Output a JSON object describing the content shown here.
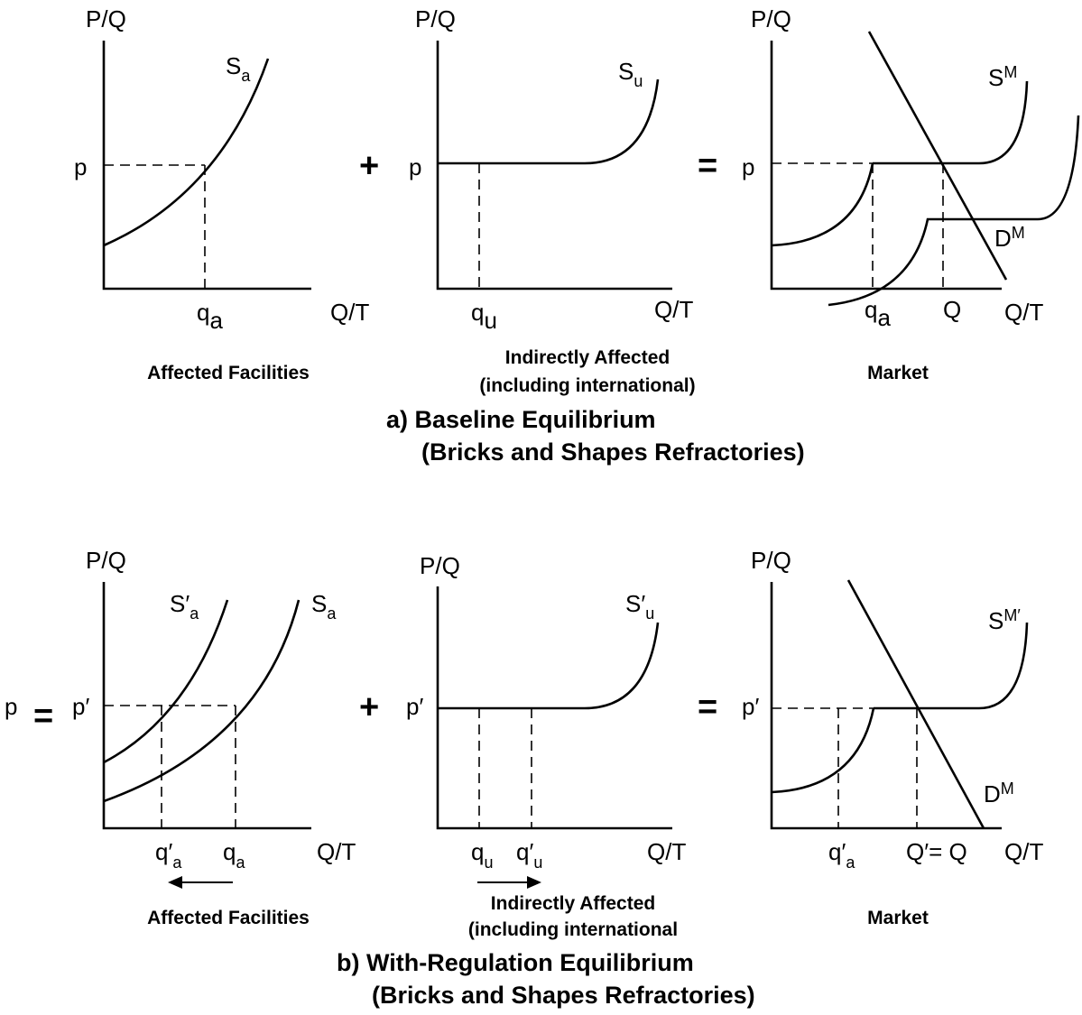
{
  "axes": {
    "price": "P/Q",
    "quantity": "Q/T"
  },
  "operators": {
    "plus": "+",
    "equals": "="
  },
  "panel_a": {
    "affected": {
      "supply_main": "S",
      "supply_sub": "a",
      "price": "p",
      "qty_main": "q",
      "qty_sub": "a",
      "caption": "Affected Facilities"
    },
    "indirect": {
      "supply_main": "S",
      "supply_sub": "u",
      "price": "p",
      "qty_main": "q",
      "qty_sub": "u",
      "caption_line1": "Indirectly Affected",
      "caption_line2": "(including international)"
    },
    "market": {
      "supply_main": "S",
      "supply_sup": "M",
      "demand_main": "D",
      "demand_sup": "M",
      "price": "p",
      "qty_main": "q",
      "qty_sub": "a",
      "qty_total": "Q",
      "caption": "Market"
    },
    "title_line1": "a) Baseline Equilibrium",
    "title_line2": "(Bricks and Shapes Refractories)"
  },
  "panel_b": {
    "lhs_price": "p",
    "affected": {
      "supply_new_main": "S′",
      "supply_new_sub": "a",
      "supply_main": "S",
      "supply_sub": "a",
      "price": "p′",
      "qty_new_main": "q′",
      "qty_new_sub": "a",
      "qty_main": "q",
      "qty_sub": "a",
      "caption": "Affected Facilities"
    },
    "indirect": {
      "supply_main": "S′",
      "supply_sub": "u",
      "price": "p′",
      "qty_main": "q",
      "qty_sub": "u",
      "qty_new_main": "q′",
      "qty_new_sub": "u",
      "caption_line1": "Indirectly Affected",
      "caption_line2": "(including international"
    },
    "market": {
      "supply_main": "S",
      "supply_sup": "M′",
      "demand_main": "D",
      "demand_sup": "M",
      "price": "p′",
      "qty_main": "q′",
      "qty_sub": "a",
      "qty_total": "Q′= Q",
      "caption": "Market"
    },
    "title_line1": "b) With-Regulation Equilibrium",
    "title_line2": "(Bricks and Shapes Refractories)"
  }
}
